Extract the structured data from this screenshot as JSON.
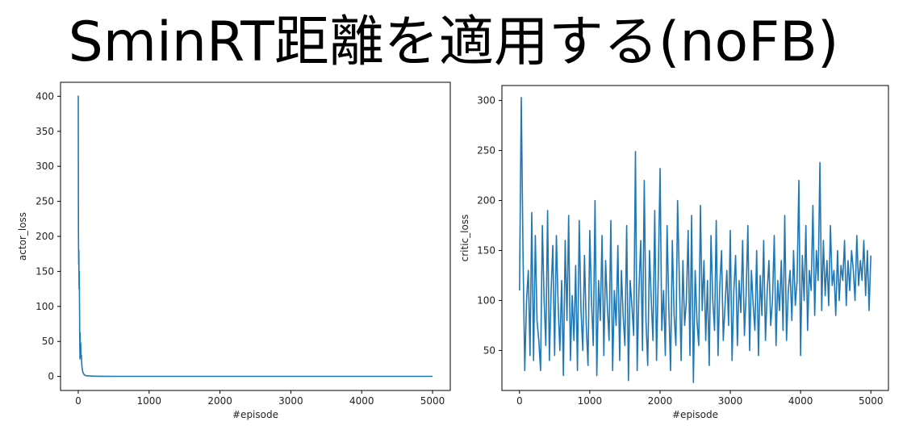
{
  "slide": {
    "title": "SminRT距離を適用する(noFB)"
  },
  "chart_data": [
    {
      "type": "line",
      "xlabel": "#episode",
      "ylabel": "actor_loss",
      "xlim": [
        -250,
        5250
      ],
      "ylim": [
        -20,
        420
      ],
      "xticks": [
        0,
        1000,
        2000,
        3000,
        4000,
        5000
      ],
      "yticks": [
        0,
        50,
        100,
        150,
        200,
        250,
        300,
        350,
        400
      ],
      "grid": false,
      "series": [
        {
          "color": "#1f77b4",
          "x": [
            0,
            3,
            6,
            9,
            12,
            15,
            18,
            21,
            24,
            27,
            30,
            35,
            40,
            45,
            50,
            55,
            60,
            70,
            80,
            90,
            100,
            120,
            150,
            200,
            300,
            500,
            1000,
            2000,
            3000,
            4000,
            5000
          ],
          "y": [
            401,
            210,
            160,
            180,
            125,
            150,
            110,
            60,
            25,
            62,
            40,
            48,
            28,
            30,
            18,
            12,
            8,
            5,
            3,
            2,
            1.5,
            1,
            0.8,
            0.5,
            0.3,
            0.2,
            0.1,
            0.1,
            0.1,
            0.1,
            0.1
          ]
        }
      ]
    },
    {
      "type": "line",
      "xlabel": "#episode",
      "ylabel": "critic_loss",
      "xlim": [
        -250,
        5250
      ],
      "ylim": [
        10,
        315
      ],
      "xticks": [
        0,
        1000,
        2000,
        3000,
        4000,
        5000
      ],
      "yticks": [
        50,
        100,
        150,
        200,
        250,
        300
      ],
      "grid": false,
      "series": [
        {
          "color": "#1f77b4",
          "x": [
            0,
            25,
            50,
            75,
            100,
            125,
            150,
            175,
            200,
            225,
            250,
            275,
            300,
            325,
            350,
            375,
            400,
            425,
            450,
            475,
            500,
            525,
            550,
            575,
            600,
            625,
            650,
            675,
            700,
            725,
            750,
            775,
            800,
            825,
            850,
            875,
            900,
            925,
            950,
            975,
            1000,
            1025,
            1050,
            1075,
            1100,
            1125,
            1150,
            1175,
            1200,
            1225,
            1250,
            1275,
            1300,
            1325,
            1350,
            1375,
            1400,
            1425,
            1450,
            1475,
            1500,
            1525,
            1550,
            1575,
            1600,
            1625,
            1650,
            1675,
            1700,
            1725,
            1750,
            1775,
            1800,
            1825,
            1850,
            1875,
            1900,
            1925,
            1950,
            1975,
            2000,
            2025,
            2050,
            2075,
            2100,
            2125,
            2150,
            2175,
            2200,
            2225,
            2250,
            2275,
            2300,
            2325,
            2350,
            2375,
            2400,
            2425,
            2450,
            2475,
            2500,
            2525,
            2550,
            2575,
            2600,
            2625,
            2650,
            2675,
            2700,
            2725,
            2750,
            2775,
            2800,
            2825,
            2850,
            2875,
            2900,
            2925,
            2950,
            2975,
            3000,
            3025,
            3050,
            3075,
            3100,
            3125,
            3150,
            3175,
            3200,
            3225,
            3250,
            3275,
            3300,
            3325,
            3350,
            3375,
            3400,
            3425,
            3450,
            3475,
            3500,
            3525,
            3550,
            3575,
            3600,
            3625,
            3650,
            3675,
            3700,
            3725,
            3750,
            3775,
            3800,
            3825,
            3850,
            3875,
            3900,
            3925,
            3950,
            3975,
            4000,
            4025,
            4050,
            4075,
            4100,
            4125,
            4150,
            4175,
            4200,
            4225,
            4250,
            4275,
            4300,
            4325,
            4350,
            4375,
            4400,
            4425,
            4450,
            4475,
            4500,
            4525,
            4550,
            4575,
            4600,
            4625,
            4650,
            4675,
            4700,
            4725,
            4750,
            4775,
            4800,
            4825,
            4850,
            4875,
            4900,
            4925,
            4950,
            4975,
            5000
          ],
          "y": [
            110,
            303,
            150,
            30,
            100,
            130,
            45,
            188,
            40,
            165,
            80,
            60,
            30,
            175,
            100,
            55,
            190,
            40,
            110,
            155,
            45,
            165,
            95,
            50,
            120,
            25,
            160,
            80,
            185,
            40,
            105,
            60,
            135,
            30,
            180,
            90,
            50,
            145,
            75,
            35,
            170,
            100,
            55,
            200,
            25,
            120,
            80,
            165,
            45,
            140,
            95,
            60,
            180,
            30,
            110,
            75,
            155,
            40,
            130,
            85,
            55,
            175,
            20,
            120,
            95,
            65,
            249,
            30,
            110,
            160,
            50,
            220,
            80,
            35,
            150,
            100,
            60,
            190,
            40,
            125,
            232,
            70,
            110,
            45,
            175,
            95,
            30,
            160,
            85,
            55,
            200,
            120,
            40,
            140,
            75,
            100,
            170,
            45,
            185,
            18,
            130,
            80,
            55,
            195,
            90,
            140,
            60,
            120,
            35,
            165,
            100,
            70,
            180,
            45,
            115,
            150,
            60,
            95,
            130,
            75,
            170,
            40,
            110,
            145,
            55,
            120,
            88,
            160,
            65,
            105,
            175,
            50,
            130,
            95,
            70,
            150,
            45,
            125,
            85,
            160,
            60,
            110,
            140,
            75,
            100,
            165,
            55,
            120,
            90,
            140,
            70,
            185,
            60,
            110,
            130,
            80,
            150,
            95,
            120,
            220,
            45,
            145,
            100,
            175,
            70,
            130,
            110,
            195,
            85,
            150,
            120,
            238,
            90,
            160,
            105,
            140,
            95,
            175,
            115,
            130,
            85,
            150,
            100,
            135,
            120,
            160,
            95,
            140,
            110,
            150,
            130,
            100,
            165,
            115,
            140,
            120,
            160,
            105,
            150,
            90,
            145
          ]
        }
      ]
    }
  ]
}
